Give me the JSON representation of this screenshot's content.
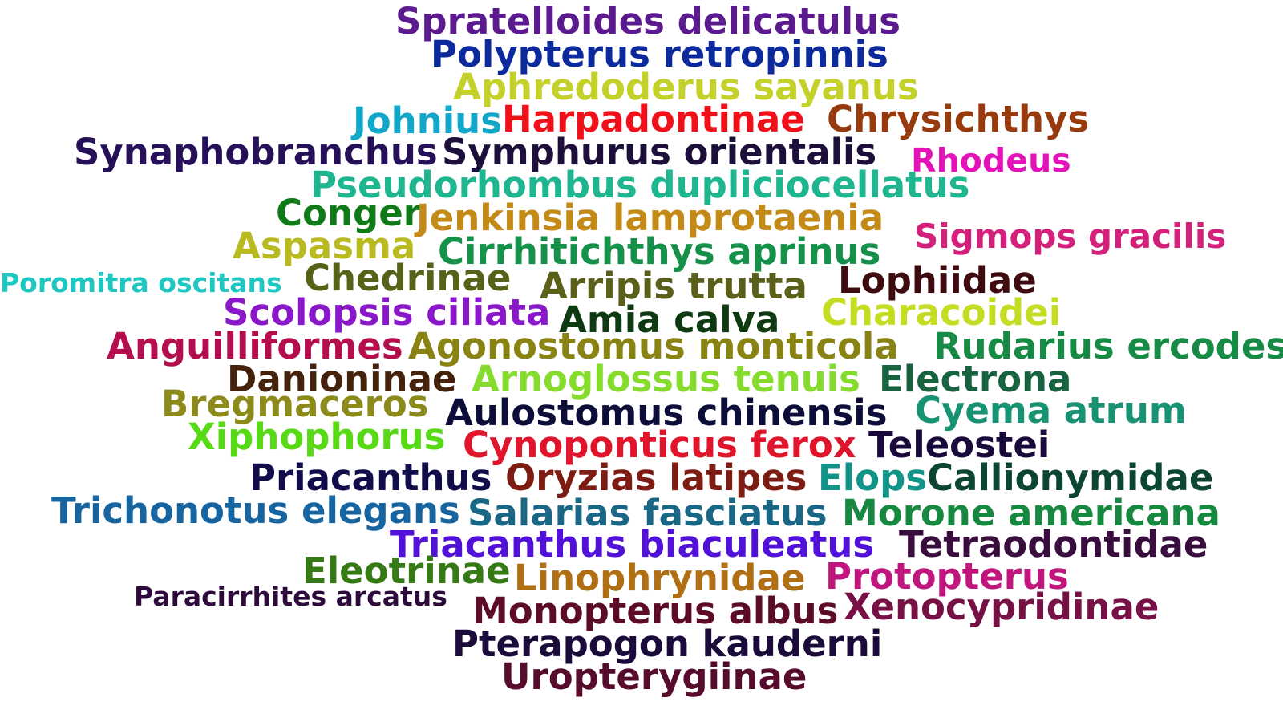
{
  "words": [
    {
      "text": "Spratelloides delicatulus",
      "color": "#5b1a8e"
    },
    {
      "text": "Polypterus retropinnis",
      "color": "#0c2a9c"
    },
    {
      "text": "Aphredoderus sayanus",
      "color": "#c3d12a"
    },
    {
      "text": "Johnius",
      "color": "#12a7c9"
    },
    {
      "text": "Harpadontinae",
      "color": "#f0101a"
    },
    {
      "text": "Chrysichthys",
      "color": "#973a0e"
    },
    {
      "text": "Synaphobranchus",
      "color": "#261058"
    },
    {
      "text": "Symphurus orientalis",
      "color": "#1c0f3a"
    },
    {
      "text": "Rhodeus",
      "color": "#e313b9"
    },
    {
      "text": "Pseudorhombus dupliciocellatus",
      "color": "#1eb58f"
    },
    {
      "text": "Conger",
      "color": "#0f7a17"
    },
    {
      "text": "Jenkinsia lamprotaenia",
      "color": "#c48a18"
    },
    {
      "text": "Sigmops gracilis",
      "color": "#d3207a"
    },
    {
      "text": "Aspasma",
      "color": "#b8ba1f"
    },
    {
      "text": "Cirrhitichthys aprinus",
      "color": "#15914a"
    },
    {
      "text": "Poromitra oscitans",
      "color": "#1ec7c1"
    },
    {
      "text": "Chedrinae",
      "color": "#566217"
    },
    {
      "text": "Arripis trutta",
      "color": "#5a5f1a"
    },
    {
      "text": "Lophiidae",
      "color": "#3d0b10"
    },
    {
      "text": "Scolopsis ciliata",
      "color": "#8a17c9"
    },
    {
      "text": "Amia calva",
      "color": "#0e3a12"
    },
    {
      "text": "Characoidei",
      "color": "#c4dc21"
    },
    {
      "text": "Anguilliformes",
      "color": "#b40e4e"
    },
    {
      "text": "Agonostomus monticola",
      "color": "#888312"
    },
    {
      "text": "Rudarius ercodes",
      "color": "#178a45"
    },
    {
      "text": "Danioninae",
      "color": "#45220c"
    },
    {
      "text": "Arnoglossus tenuis",
      "color": "#86dc2d"
    },
    {
      "text": "Electrona",
      "color": "#17623f"
    },
    {
      "text": "Bregmaceros",
      "color": "#8b8a1a"
    },
    {
      "text": "Aulostomus chinensis",
      "color": "#0d0d3a"
    },
    {
      "text": "Cyema atrum",
      "color": "#179273"
    },
    {
      "text": "Xiphophorus",
      "color": "#58d916"
    },
    {
      "text": "Cynoponticus ferox",
      "color": "#e0142b"
    },
    {
      "text": "Teleostei",
      "color": "#1a0a3b"
    },
    {
      "text": "Priacanthus",
      "color": "#100d4a"
    },
    {
      "text": "Oryzias latipes",
      "color": "#7d1c13"
    },
    {
      "text": "Elops",
      "color": "#129387"
    },
    {
      "text": "Callionymidae",
      "color": "#0c4534"
    },
    {
      "text": "Trichonotus elegans",
      "color": "#1765a0"
    },
    {
      "text": "Salarias fasciatus",
      "color": "#1a6785"
    },
    {
      "text": "Morone americana",
      "color": "#17883f"
    },
    {
      "text": "Triacanthus biaculeatus",
      "color": "#5211d9"
    },
    {
      "text": "Tetraodontidae",
      "color": "#3a0d3f"
    },
    {
      "text": "Eleotrinae",
      "color": "#367a15"
    },
    {
      "text": "Linophrynidae",
      "color": "#b06f13"
    },
    {
      "text": "Protopterus",
      "color": "#c0157c"
    },
    {
      "text": "Paracirrhites arcatus",
      "color": "#2e0a3c"
    },
    {
      "text": "Monopterus albus",
      "color": "#5c0c25"
    },
    {
      "text": "Xenocypridinae",
      "color": "#761045"
    },
    {
      "text": "Pterapogon kauderni",
      "color": "#1b0b3b"
    },
    {
      "text": "Uropterygiinae",
      "color": "#570c2d"
    }
  ]
}
